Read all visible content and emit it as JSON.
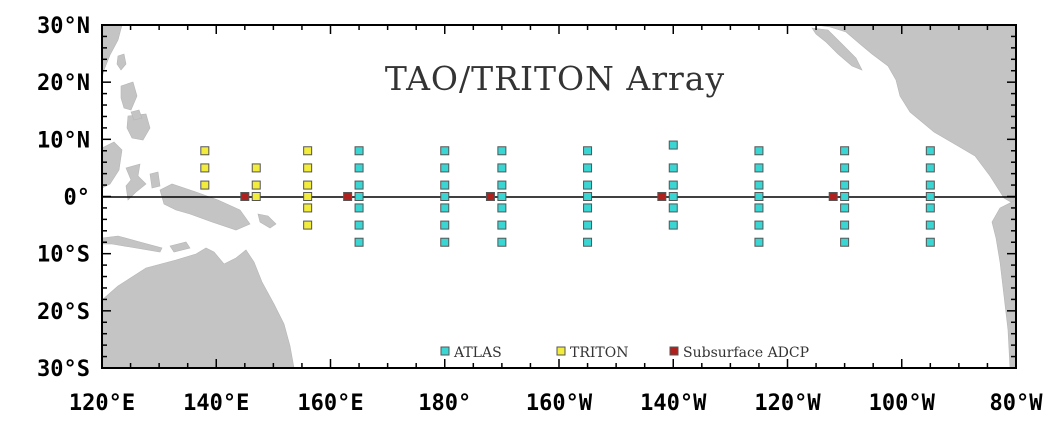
{
  "title": "TAO/TRITON Array",
  "axes": {
    "lon_range": [
      120,
      280
    ],
    "lat_range": [
      -30,
      30
    ],
    "x_ticks": [
      {
        "lon": 120,
        "label": "120°E"
      },
      {
        "lon": 140,
        "label": "140°E"
      },
      {
        "lon": 160,
        "label": "160°E"
      },
      {
        "lon": 180,
        "label": "180°"
      },
      {
        "lon": 200,
        "label": "160°W"
      },
      {
        "lon": 220,
        "label": "140°W"
      },
      {
        "lon": 240,
        "label": "120°W"
      },
      {
        "lon": 260,
        "label": "100°W"
      },
      {
        "lon": 280,
        "label": "80°W"
      }
    ],
    "y_ticks": [
      {
        "lat": 30,
        "label": "30°N"
      },
      {
        "lat": 20,
        "label": "20°N"
      },
      {
        "lat": 10,
        "label": "10°N"
      },
      {
        "lat": 0,
        "label": "0°"
      },
      {
        "lat": -10,
        "label": "10°S"
      },
      {
        "lat": -20,
        "label": "20°S"
      },
      {
        "lat": -30,
        "label": "30°S"
      }
    ]
  },
  "legend": [
    {
      "label": "ATLAS",
      "color": "#3ad6d4"
    },
    {
      "label": "TRITON",
      "color": "#f2ec3c"
    },
    {
      "label": "Subsurface ADCP",
      "color": "#b0201c"
    }
  ],
  "colors": {
    "land": "#c4c4c4",
    "ocean": "#ffffff",
    "equator": "#000000",
    "marker_stroke": "#555555"
  },
  "moorings": {
    "atlas": [
      {
        "lon": 165,
        "lats": [
          8,
          5,
          2,
          0,
          -2,
          -5,
          -8
        ]
      },
      {
        "lon": 180,
        "lats": [
          8,
          5,
          2,
          0,
          -2,
          -5,
          -8
        ]
      },
      {
        "lon": 190,
        "lats": [
          8,
          5,
          2,
          0,
          -2,
          -5,
          -8
        ]
      },
      {
        "lon": 205,
        "lats": [
          8,
          5,
          2,
          0,
          -2,
          -5,
          -8
        ]
      },
      {
        "lon": 220,
        "lats": [
          9,
          5,
          2,
          0,
          -2,
          -5
        ]
      },
      {
        "lon": 235,
        "lats": [
          8,
          5,
          2,
          0,
          -2,
          -5,
          -8
        ]
      },
      {
        "lon": 250,
        "lats": [
          8,
          5,
          2,
          0,
          -2,
          -5,
          -8
        ]
      },
      {
        "lon": 265,
        "lats": [
          8,
          5,
          2,
          0,
          -2,
          -5,
          -8
        ]
      }
    ],
    "triton": [
      {
        "lon": 138,
        "lats": [
          8,
          5,
          2
        ]
      },
      {
        "lon": 147,
        "lats": [
          5,
          2,
          0
        ]
      },
      {
        "lon": 156,
        "lats": [
          8,
          5,
          2,
          0,
          -2,
          -5
        ]
      }
    ],
    "adcp": [
      {
        "lon": 145,
        "lat": 0
      },
      {
        "lon": 163,
        "lat": 0
      },
      {
        "lon": 188,
        "lat": 0
      },
      {
        "lon": 218,
        "lat": 0
      },
      {
        "lon": 248,
        "lat": 0
      }
    ]
  }
}
